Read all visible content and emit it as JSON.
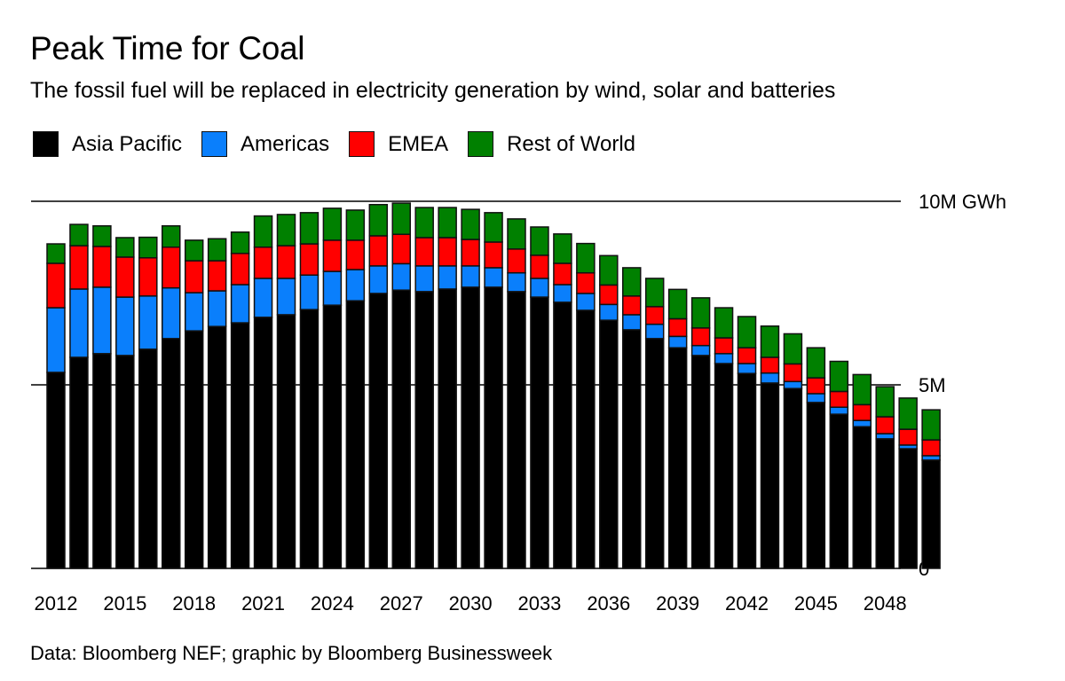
{
  "chart_data": {
    "type": "bar",
    "stacked": true,
    "title": "Peak Time for Coal",
    "subtitle": "The fossil fuel will be replaced in electricity generation by wind, solar and batteries",
    "source": "Data: Bloomberg NEF; graphic by Bloomberg Businessweek",
    "legend_position": "top-left",
    "grid": true,
    "ylim": [
      0,
      10
    ],
    "yticks": [
      {
        "value": 10,
        "label": "10M GWh"
      },
      {
        "value": 5,
        "label": "5M"
      },
      {
        "value": 0,
        "label": "0"
      }
    ],
    "xtick_labels": [
      "2012",
      "2015",
      "2018",
      "2021",
      "2024",
      "2027",
      "2030",
      "2033",
      "2036",
      "2039",
      "2042",
      "2045",
      "2048"
    ],
    "categories": [
      2012,
      2013,
      2014,
      2015,
      2016,
      2017,
      2018,
      2019,
      2020,
      2021,
      2022,
      2023,
      2024,
      2025,
      2026,
      2027,
      2028,
      2029,
      2030,
      2031,
      2032,
      2033,
      2034,
      2035,
      2036,
      2037,
      2038,
      2039,
      2040,
      2041,
      2042,
      2043,
      2044,
      2045,
      2046,
      2047,
      2048,
      2049,
      2050
    ],
    "series": [
      {
        "name": "Asia Pacific",
        "color": "#000000",
        "values": [
          5.34,
          5.75,
          5.85,
          5.8,
          5.97,
          6.26,
          6.47,
          6.59,
          6.69,
          6.84,
          6.91,
          7.05,
          7.17,
          7.29,
          7.49,
          7.58,
          7.54,
          7.61,
          7.66,
          7.66,
          7.54,
          7.39,
          7.25,
          7.03,
          6.76,
          6.5,
          6.26,
          6.01,
          5.8,
          5.58,
          5.31,
          5.05,
          4.9,
          4.52,
          4.2,
          3.86,
          3.53,
          3.26,
          2.95
        ]
      },
      {
        "name": "Americas",
        "color": "#0a7ffc",
        "values": [
          1.76,
          1.86,
          1.81,
          1.59,
          1.45,
          1.38,
          1.04,
          0.97,
          1.04,
          1.06,
          0.99,
          0.94,
          0.92,
          0.85,
          0.75,
          0.72,
          0.7,
          0.63,
          0.58,
          0.53,
          0.51,
          0.51,
          0.48,
          0.46,
          0.43,
          0.41,
          0.39,
          0.31,
          0.27,
          0.27,
          0.27,
          0.27,
          0.19,
          0.24,
          0.19,
          0.17,
          0.14,
          0.1,
          0.12
        ]
      },
      {
        "name": "EMEA",
        "color": "#ff0000",
        "values": [
          1.21,
          1.18,
          1.11,
          1.09,
          1.04,
          1.11,
          0.87,
          0.82,
          0.85,
          0.85,
          0.89,
          0.85,
          0.85,
          0.8,
          0.82,
          0.8,
          0.77,
          0.77,
          0.72,
          0.7,
          0.65,
          0.63,
          0.58,
          0.56,
          0.53,
          0.51,
          0.48,
          0.48,
          0.48,
          0.43,
          0.43,
          0.43,
          0.48,
          0.43,
          0.43,
          0.43,
          0.46,
          0.43,
          0.43
        ]
      },
      {
        "name": "Rest of World",
        "color": "#008000",
        "values": [
          0.53,
          0.58,
          0.56,
          0.53,
          0.56,
          0.58,
          0.56,
          0.6,
          0.58,
          0.85,
          0.85,
          0.85,
          0.87,
          0.82,
          0.85,
          0.85,
          0.82,
          0.82,
          0.82,
          0.8,
          0.82,
          0.77,
          0.8,
          0.8,
          0.8,
          0.77,
          0.77,
          0.8,
          0.82,
          0.82,
          0.85,
          0.85,
          0.82,
          0.82,
          0.82,
          0.82,
          0.82,
          0.85,
          0.82
        ]
      }
    ]
  }
}
